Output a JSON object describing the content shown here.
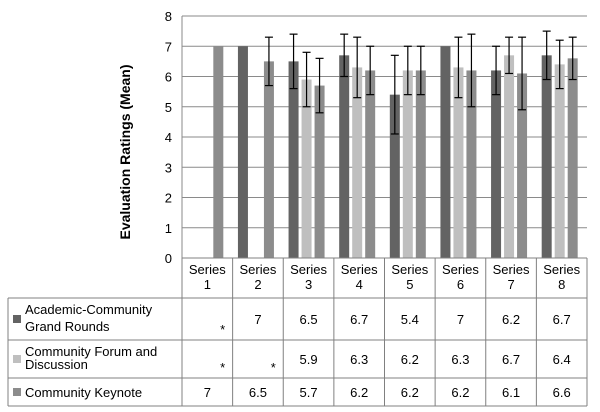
{
  "chart_data": {
    "type": "bar",
    "title": "",
    "xlabel": "",
    "ylabel": "Evaluation Ratings (Mean)",
    "ylim": [
      0,
      8
    ],
    "yticks": [
      "0",
      "1",
      "2",
      "3",
      "4",
      "5",
      "6",
      "7",
      "8"
    ],
    "grid": true,
    "categories": [
      [
        "Series",
        "1"
      ],
      [
        "Series",
        "2"
      ],
      [
        "Series",
        "3"
      ],
      [
        "Series",
        "4"
      ],
      [
        "Series",
        "5"
      ],
      [
        "Series",
        "6"
      ],
      [
        "Series",
        "7"
      ],
      [
        "Series",
        "8"
      ]
    ],
    "series": [
      {
        "name": [
          "Academic-Community",
          "Grand Rounds"
        ],
        "color": "#636363",
        "values": [
          null,
          7,
          6.5,
          6.7,
          5.4,
          7,
          6.2,
          6.7
        ],
        "labels": [
          "*",
          "7",
          "6.5",
          "6.7",
          "5.4",
          "7",
          "6.2",
          "6.7"
        ],
        "err": [
          null,
          0,
          0.9,
          0.7,
          1.3,
          0,
          0.8,
          0.8
        ]
      },
      {
        "name": [
          "Community Forum and",
          "Discussion"
        ],
        "color": "#bfbfbf",
        "values": [
          null,
          null,
          5.9,
          6.3,
          6.2,
          6.3,
          6.7,
          6.4
        ],
        "labels": [
          "*",
          "*",
          "5.9",
          "6.3",
          "6.2",
          "6.3",
          "6.7",
          "6.4"
        ],
        "err": [
          null,
          null,
          0.9,
          1.0,
          0.8,
          1.0,
          0.6,
          0.8
        ]
      },
      {
        "name": [
          "Community Keynote"
        ],
        "color": "#8c8c8c",
        "values": [
          7,
          6.5,
          5.7,
          6.2,
          6.2,
          6.2,
          6.1,
          6.6
        ],
        "labels": [
          "7",
          "6.5",
          "5.7",
          "6.2",
          "6.2",
          "6.2",
          "6.1",
          "6.6"
        ],
        "err": [
          0,
          0.8,
          0.9,
          0.8,
          0.8,
          1.2,
          1.2,
          0.7
        ]
      }
    ]
  }
}
